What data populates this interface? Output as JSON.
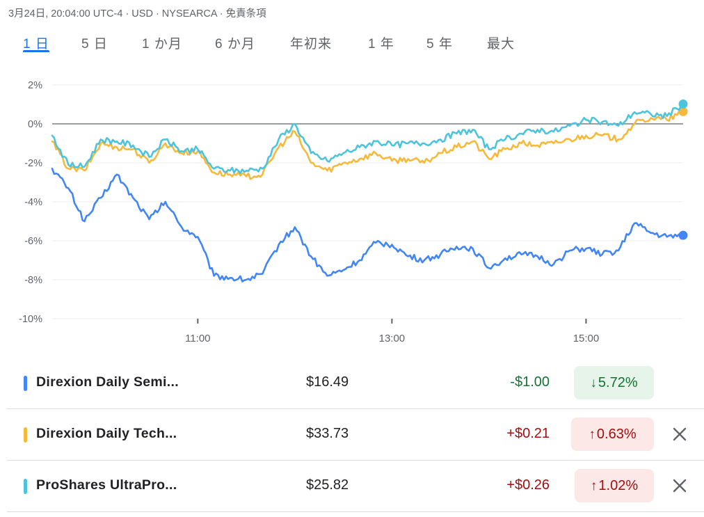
{
  "header": {
    "info": "3月24日, 20:04:00 UTC-4 · USD · NYSEARCA · 免責条項"
  },
  "tabs": [
    {
      "label": "1 日",
      "active": true
    },
    {
      "label": "5 日",
      "active": false
    },
    {
      "label": "1 か月",
      "active": false
    },
    {
      "label": "6 か月",
      "active": false
    },
    {
      "label": "年初来",
      "active": false
    },
    {
      "label": "1 年",
      "active": false
    },
    {
      "label": "5 年",
      "active": false
    },
    {
      "label": "最大",
      "active": false
    }
  ],
  "chart_data": {
    "type": "line",
    "y_ticks": [
      "2%",
      "0%",
      "-2%",
      "-4%",
      "-6%",
      "-8%",
      "-10%"
    ],
    "ylim": [
      -10,
      2
    ],
    "x_ticks": [
      "11:00",
      "13:00",
      "15:00"
    ],
    "x_tick_times": [
      "11:00",
      "13:00",
      "15:00"
    ],
    "x_range": [
      "9:30",
      "16:00"
    ],
    "reference_line": 0,
    "grid": true,
    "series": [
      {
        "name": "Direxion Daily Semi...",
        "color": "#4285f4",
        "times": [
          "9:30",
          "9:40",
          "9:50",
          "10:00",
          "10:10",
          "10:20",
          "10:30",
          "10:40",
          "10:50",
          "11:00",
          "11:10",
          "11:20",
          "11:30",
          "11:40",
          "11:50",
          "12:00",
          "12:10",
          "12:20",
          "12:30",
          "12:40",
          "12:50",
          "13:00",
          "13:10",
          "13:20",
          "13:30",
          "13:40",
          "13:50",
          "14:00",
          "14:10",
          "14:20",
          "14:30",
          "14:40",
          "14:50",
          "15:00",
          "15:10",
          "15:20",
          "15:30",
          "15:40",
          "15:50",
          "16:00"
        ],
        "values": [
          -2.3,
          -3.3,
          -5.0,
          -3.8,
          -2.6,
          -3.8,
          -4.9,
          -4.0,
          -5.3,
          -5.8,
          -7.8,
          -7.9,
          -8.0,
          -7.7,
          -6.2,
          -5.3,
          -6.8,
          -7.8,
          -7.5,
          -7.0,
          -6.1,
          -6.2,
          -6.8,
          -7.0,
          -6.7,
          -6.3,
          -6.4,
          -7.4,
          -6.9,
          -6.7,
          -6.8,
          -7.2,
          -6.5,
          -6.4,
          -6.7,
          -6.5,
          -5.1,
          -5.6,
          -5.8,
          -5.72
        ]
      },
      {
        "name": "Direxion Daily Tech...",
        "color": "#f6b93b",
        "times": [
          "9:30",
          "9:40",
          "9:50",
          "10:00",
          "10:10",
          "10:20",
          "10:30",
          "10:40",
          "10:50",
          "11:00",
          "11:10",
          "11:20",
          "11:30",
          "11:40",
          "11:50",
          "12:00",
          "12:10",
          "12:20",
          "12:30",
          "12:40",
          "12:50",
          "13:00",
          "13:10",
          "13:20",
          "13:30",
          "13:40",
          "13:50",
          "14:00",
          "14:10",
          "14:20",
          "14:30",
          "14:40",
          "14:50",
          "15:00",
          "15:10",
          "15:20",
          "15:30",
          "15:40",
          "15:50",
          "16:00"
        ],
        "values": [
          -0.9,
          -2.3,
          -2.4,
          -1.0,
          -1.2,
          -1.3,
          -2.0,
          -1.0,
          -1.5,
          -1.4,
          -2.5,
          -2.6,
          -2.7,
          -2.6,
          -1.2,
          -0.4,
          -2.0,
          -2.4,
          -2.0,
          -1.8,
          -1.5,
          -1.9,
          -1.8,
          -2.0,
          -1.5,
          -1.2,
          -0.9,
          -1.8,
          -1.3,
          -1.0,
          -1.1,
          -1.0,
          -0.8,
          -0.6,
          -0.6,
          -0.8,
          0.0,
          0.3,
          0.2,
          0.63
        ]
      },
      {
        "name": "ProShares UltraPro...",
        "color": "#4dc3dc",
        "times": [
          "9:30",
          "9:40",
          "9:50",
          "10:00",
          "10:10",
          "10:20",
          "10:30",
          "10:40",
          "10:50",
          "11:00",
          "11:10",
          "11:20",
          "11:30",
          "11:40",
          "11:50",
          "12:00",
          "12:10",
          "12:20",
          "12:30",
          "12:40",
          "12:50",
          "13:00",
          "13:10",
          "13:20",
          "13:30",
          "13:40",
          "13:50",
          "14:00",
          "14:10",
          "14:20",
          "14:30",
          "14:40",
          "14:50",
          "15:00",
          "15:10",
          "15:20",
          "15:30",
          "15:40",
          "15:50",
          "16:00"
        ],
        "values": [
          -0.6,
          -2.1,
          -2.2,
          -0.8,
          -0.9,
          -1.1,
          -1.7,
          -0.8,
          -1.4,
          -1.3,
          -2.3,
          -2.4,
          -2.4,
          -2.3,
          -0.8,
          0.0,
          -1.5,
          -1.9,
          -1.5,
          -1.2,
          -0.9,
          -1.1,
          -1.0,
          -1.0,
          -0.8,
          -0.5,
          -0.3,
          -1.3,
          -0.8,
          -0.5,
          -0.3,
          -0.4,
          -0.1,
          0.2,
          0.1,
          -0.1,
          0.6,
          0.5,
          0.4,
          1.02
        ]
      }
    ]
  },
  "rows": [
    {
      "name": "Direxion Daily Semi...",
      "color": "#4285f4",
      "price": "$16.49",
      "change": "-$1.00",
      "pct": "5.72%",
      "direction": "down",
      "arrow": "↓",
      "removable": false
    },
    {
      "name": "Direxion Daily Tech...",
      "color": "#f6b93b",
      "price": "$33.73",
      "change": "+$0.21",
      "pct": "0.63%",
      "direction": "up",
      "arrow": "↑",
      "removable": true
    },
    {
      "name": "ProShares UltraPro...",
      "color": "#4dc3dc",
      "price": "$25.82",
      "change": "+$0.26",
      "pct": "1.02%",
      "direction": "up",
      "arrow": "↑",
      "removable": true
    }
  ],
  "icons": {
    "remove": "close-icon",
    "down": "arrow-down-icon",
    "up": "arrow-up-icon"
  }
}
